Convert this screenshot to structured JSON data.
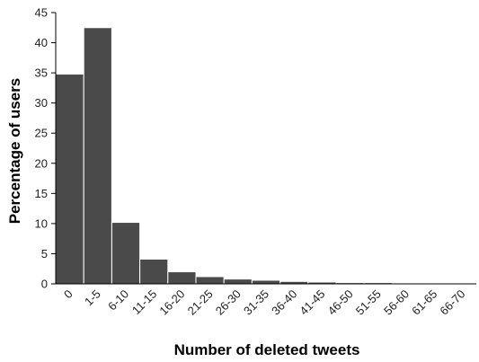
{
  "chart_data": {
    "type": "bar",
    "title": "",
    "xlabel": "Number of deleted tweets",
    "ylabel": "Percentage of users",
    "categories": [
      "0",
      "1-5",
      "6-10",
      "11-15",
      "16-20",
      "21-25",
      "26-30",
      "31-35",
      "36-40",
      "41-45",
      "46-50",
      "51-55",
      "56-60",
      "61-65",
      "66-70"
    ],
    "values": [
      34.8,
      42.5,
      10.2,
      4.1,
      2.0,
      1.2,
      0.8,
      0.6,
      0.4,
      0.3,
      0.2,
      0.2,
      0.15,
      0.1,
      0.05
    ],
    "ylim": [
      0,
      45
    ],
    "yticks": [
      0,
      5,
      10,
      15,
      20,
      25,
      30,
      35,
      40,
      45
    ],
    "grid": false,
    "legend": "none",
    "bar_color": "#4a4a4a",
    "bar_edge_color": "#ffffff"
  }
}
